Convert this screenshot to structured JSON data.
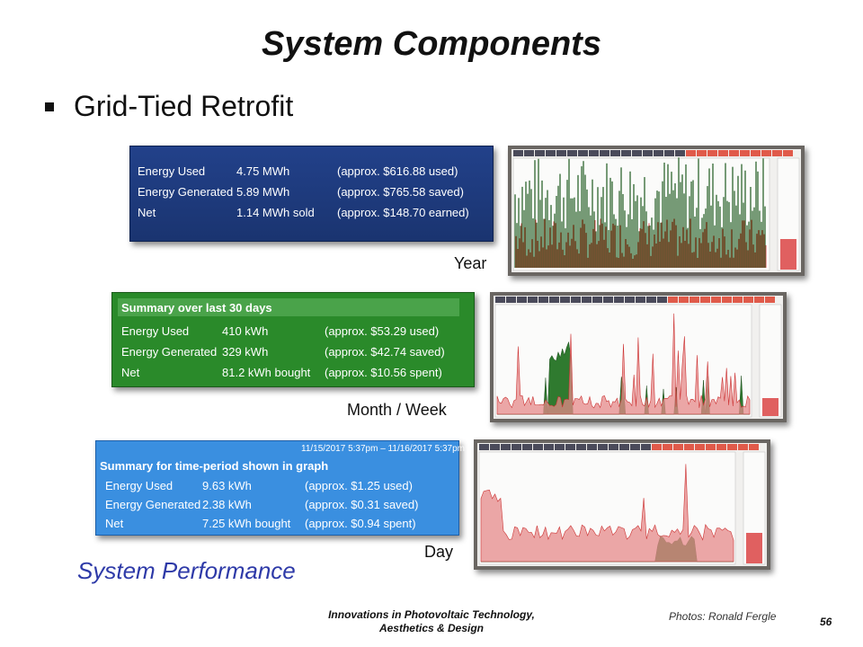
{
  "slide": {
    "title": "System Components",
    "bullet": "Grid-Tied Retrofit",
    "system_performance": "System Performance",
    "footer_line1": "Innovations in Photovoltaic Technology,",
    "footer_line2": "Aesthetics & Design",
    "credit": "Photos: Ronald Fergle",
    "page_number": "56"
  },
  "year": {
    "caption": "Year",
    "rows": [
      {
        "label": "Energy Used",
        "value": "4.75 MWh",
        "note": "(approx. $616.88 used)"
      },
      {
        "label": "Energy Generated",
        "value": "5.89 MWh",
        "note": "(approx. $765.58 saved)"
      },
      {
        "label": "Net",
        "value": "1.14 MWh sold",
        "note": "(approx. $148.70 earned)"
      }
    ]
  },
  "month": {
    "caption": "Month / Week",
    "header": "Summary over last 30 days",
    "rows": [
      {
        "label": "Energy Used",
        "value": "410 kWh",
        "note": "(approx. $53.29 used)"
      },
      {
        "label": "Energy Generated",
        "value": "329 kWh",
        "note": "(approx. $42.74 saved)"
      },
      {
        "label": "Net",
        "value": "81.2 kWh bought",
        "note": "(approx. $10.56 spent)"
      }
    ]
  },
  "day": {
    "caption": "Day",
    "date_range": "11/15/2017 5:37pm – 11/16/2017 5:37pm",
    "header": "Summary for time-period shown in graph",
    "rows": [
      {
        "label": "Energy Used",
        "value": "9.63 kWh",
        "note": "(approx. $1.25 used)"
      },
      {
        "label": "Energy Generated",
        "value": "2.38 kWh",
        "note": "(approx. $0.31 saved)"
      },
      {
        "label": "Net",
        "value": "7.25 kWh bought",
        "note": "(approx. $0.94 spent)"
      }
    ]
  },
  "colors": {
    "year_panel": "#1d3a7a",
    "month_panel": "#2a8a2a",
    "day_panel": "#3a8fe0",
    "used": "#e06060",
    "generated": "#2a7a2a",
    "perf_text": "#2e3aa8"
  }
}
